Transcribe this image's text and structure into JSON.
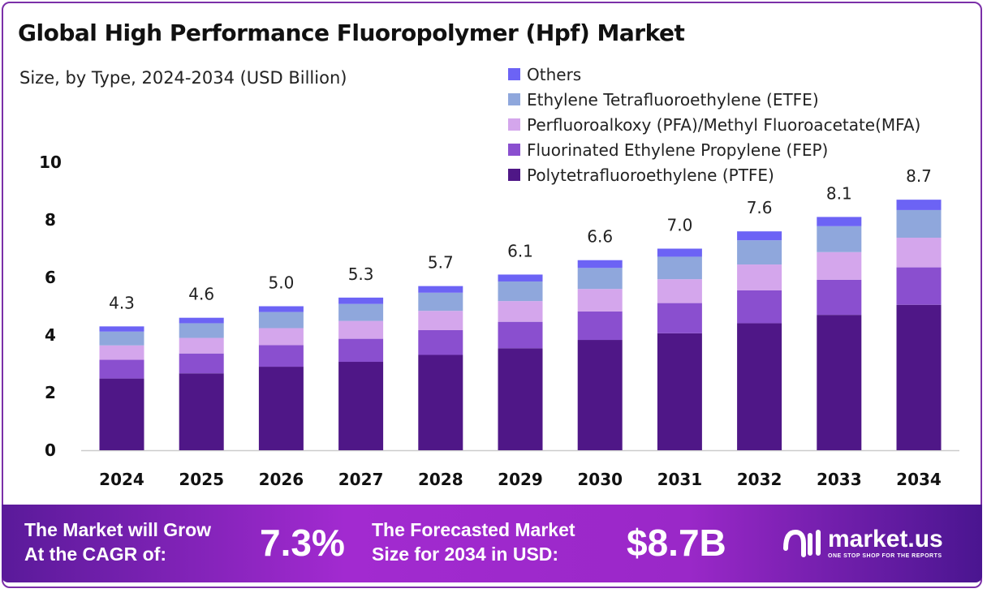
{
  "chart_data": {
    "type": "bar",
    "stacked": true,
    "title": "Global High Performance Fluoropolymer (Hpf) Market",
    "subtitle": "Size, by Type, 2024-2034 (USD Billion)",
    "xlabel": "",
    "ylabel": "",
    "ylim": [
      0,
      10
    ],
    "yticks": [
      "0",
      "2",
      "4",
      "6",
      "8",
      "10"
    ],
    "grid": false,
    "legend_position": "top-right",
    "categories": [
      "2024",
      "2025",
      "2026",
      "2027",
      "2028",
      "2029",
      "2030",
      "2031",
      "2032",
      "2033",
      "2034"
    ],
    "totals": [
      "4.3",
      "4.6",
      "5.0",
      "5.3",
      "5.7",
      "6.1",
      "6.6",
      "7.0",
      "7.6",
      "8.1",
      "8.7"
    ],
    "series": [
      {
        "name": "Polytetrafluoroethylene (PTFE)",
        "color": "#4f1787",
        "values": [
          2.49,
          2.67,
          2.9,
          3.07,
          3.31,
          3.54,
          3.83,
          4.06,
          4.41,
          4.7,
          5.05
        ]
      },
      {
        "name": "Fluorinated Ethylene Propylene (FEP)",
        "color": "#8a4fcf",
        "values": [
          0.65,
          0.69,
          0.75,
          0.8,
          0.86,
          0.92,
          0.99,
          1.05,
          1.14,
          1.22,
          1.3
        ]
      },
      {
        "name": "Perfluoroalkoxy (PFA)/Methyl Fluoroacetate(MFA)",
        "color": "#d4a6ec",
        "values": [
          0.5,
          0.54,
          0.59,
          0.62,
          0.67,
          0.72,
          0.78,
          0.83,
          0.9,
          0.96,
          1.03
        ]
      },
      {
        "name": "Ethylene Tetrafluoroethylene (ETFE)",
        "color": "#8fa7dc",
        "values": [
          0.48,
          0.51,
          0.56,
          0.59,
          0.63,
          0.68,
          0.73,
          0.78,
          0.84,
          0.9,
          0.96
        ]
      },
      {
        "name": "Others",
        "color": "#6c63f5",
        "values": [
          0.18,
          0.19,
          0.2,
          0.22,
          0.23,
          0.24,
          0.27,
          0.28,
          0.31,
          0.32,
          0.36
        ]
      }
    ]
  },
  "banner": {
    "cagr_label_1": "The Market will Grow",
    "cagr_label_2": "At the CAGR of:",
    "cagr_value": "7.3%",
    "forecast_label_1": "The Forecasted Market",
    "forecast_label_2": "Size for 2034 in USD:",
    "forecast_value": "$8.7B",
    "logo_name": "market.us",
    "logo_tagline": "ONE STOP SHOP FOR THE REPORTS"
  }
}
